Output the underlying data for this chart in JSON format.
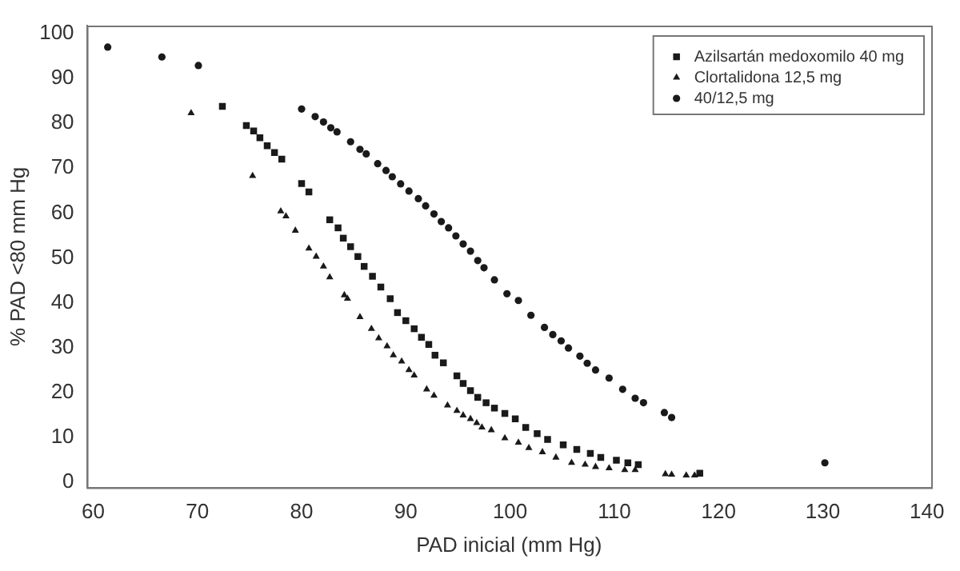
{
  "chart_data": {
    "type": "scatter",
    "xlabel": "PAD inicial (mm Hg)",
    "ylabel": "% PAD <80 mm Hg",
    "xlim": [
      59.4,
      140.4
    ],
    "ylim": [
      -1.2,
      101.8
    ],
    "xticks": [
      60,
      70,
      80,
      90,
      100,
      110,
      120,
      130,
      140
    ],
    "yticks": [
      0,
      10,
      20,
      30,
      40,
      50,
      60,
      70,
      80,
      90,
      100
    ],
    "grid": false,
    "legend": "top right",
    "series": [
      {
        "name": "Azilsartán medoxomilo 40 mg",
        "color": "#1a1a1a",
        "marker": "square",
        "x": [
          72.4,
          74.7,
          75.4,
          76.0,
          76.7,
          77.4,
          78.1,
          80.0,
          80.7,
          82.7,
          83.5,
          84.0,
          84.7,
          85.4,
          86.0,
          86.8,
          87.6,
          88.5,
          89.2,
          90.0,
          90.8,
          91.5,
          92.2,
          92.8,
          93.6,
          94.9,
          95.5,
          96.2,
          96.9,
          97.7,
          98.5,
          99.5,
          100.5,
          101.5,
          102.6,
          103.6,
          105.1,
          106.4,
          107.7,
          108.7,
          110.2,
          111.3,
          112.3,
          118.2
        ],
        "values": [
          83.8,
          79.5,
          78.3,
          76.8,
          75,
          73.5,
          72,
          66.6,
          64.7,
          58.5,
          56.7,
          54.4,
          52.5,
          50.3,
          48.1,
          45.9,
          43.5,
          40.9,
          37.8,
          36,
          34.2,
          32.3,
          30.7,
          28.3,
          26.6,
          23.7,
          22,
          20.4,
          18.9,
          17.7,
          16.5,
          15.3,
          14.1,
          12.2,
          10.8,
          9.5,
          8.3,
          7.3,
          6.4,
          5.5,
          4.9,
          4.3,
          3.9,
          2.0
        ]
      },
      {
        "name": "Clortalidona 12,5 mg",
        "color": "#1a1a1a",
        "marker": "triangle",
        "x": [
          69.4,
          75.3,
          78.0,
          78.5,
          79.4,
          80.7,
          81.4,
          82.1,
          82.7,
          84.1,
          84.4,
          85.6,
          86.7,
          87.4,
          88.2,
          88.8,
          89.6,
          90.3,
          90.8,
          92.0,
          92.7,
          94.0,
          94.9,
          95.5,
          96.2,
          96.8,
          97.3,
          98.2,
          99.5,
          100.8,
          101.8,
          103.1,
          104.4,
          105.9,
          107.2,
          108.2,
          109.5,
          111.0,
          112.0,
          114.9,
          115.5,
          116.9,
          117.7
        ],
        "values": [
          82.3,
          68.3,
          60.4,
          59.3,
          56.1,
          52.1,
          50.3,
          48.1,
          45.7,
          41.7,
          40.9,
          36.8,
          34.2,
          32.1,
          30.3,
          28.3,
          26.9,
          25,
          23.8,
          20.7,
          19.3,
          17.1,
          15.9,
          14.9,
          14.1,
          13.2,
          12.2,
          11.6,
          9.8,
          8.8,
          7.6,
          6.7,
          5.5,
          4.3,
          3.9,
          3.4,
          3.1,
          2.7,
          2.7,
          1.8,
          1.7,
          1.5,
          1.5
        ]
      },
      {
        "name": "40/12,5 mg",
        "color": "#1a1a1a",
        "marker": "circle",
        "x": [
          61.4,
          66.6,
          70.1,
          80.0,
          81.3,
          82.1,
          82.8,
          83.4,
          84.7,
          85.6,
          86.2,
          87.3,
          88.1,
          88.7,
          89.5,
          90.3,
          91.2,
          91.9,
          92.7,
          93.4,
          94.1,
          94.8,
          95.5,
          96.2,
          96.9,
          97.5,
          98.5,
          99.7,
          100.8,
          102.0,
          103.3,
          104.1,
          104.9,
          105.6,
          106.7,
          107.4,
          108.2,
          109.5,
          110.8,
          112.0,
          112.8,
          114.8,
          115.5,
          130.2
        ],
        "values": [
          97,
          94.8,
          92.9,
          83.2,
          81.5,
          80.3,
          79,
          78.1,
          75.9,
          74.2,
          73.2,
          71,
          69.5,
          68.1,
          66.5,
          64.9,
          63.2,
          61.6,
          59.8,
          58.1,
          56.7,
          54.9,
          53.1,
          51.5,
          49.4,
          47.8,
          45.1,
          42,
          40.5,
          37.2,
          34.5,
          32.9,
          31.5,
          29.9,
          28.1,
          26.5,
          25,
          23.2,
          20.7,
          18.7,
          17.7,
          15.5,
          14.4,
          4.3
        ]
      }
    ]
  }
}
